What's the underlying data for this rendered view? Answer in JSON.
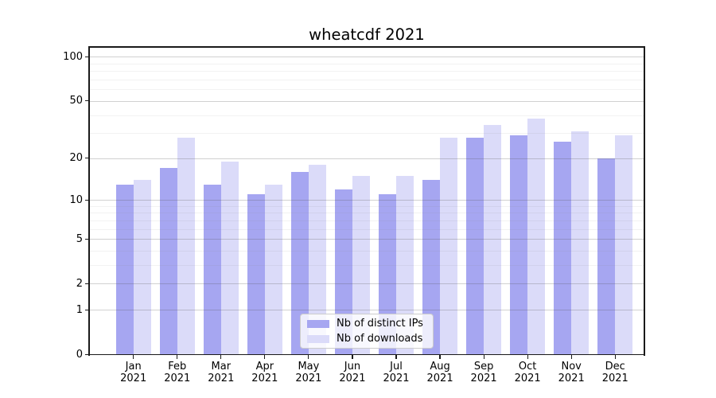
{
  "figure": {
    "title": "wheatcdf 2021"
  },
  "chart_data": {
    "type": "bar",
    "title": "wheatcdf 2021",
    "categories": [
      "Jan\n2021",
      "Feb\n2021",
      "Mar\n2021",
      "Apr\n2021",
      "May\n2021",
      "Jun\n2021",
      "Jul\n2021",
      "Aug\n2021",
      "Sep\n2021",
      "Oct\n2021",
      "Nov\n2021",
      "Dec\n2021"
    ],
    "series": [
      {
        "name": "Nb of distinct IPs",
        "color": "#a6a6f1",
        "values": [
          13,
          17,
          13,
          11,
          16,
          12,
          11,
          14,
          28,
          29,
          26,
          20
        ]
      },
      {
        "name": "Nb of downloads",
        "color": "#dbdbf9",
        "values": [
          14,
          28,
          19,
          13,
          18,
          15,
          15,
          28,
          34,
          38,
          31,
          29
        ]
      }
    ],
    "y_scale": "log1p",
    "y_ticks": [
      0,
      1,
      2,
      5,
      10,
      20,
      50,
      100
    ],
    "y_minor_lines": [
      3,
      4,
      6,
      7,
      8,
      9,
      30,
      40,
      60,
      70,
      80,
      90
    ],
    "ylim": [
      0,
      117
    ],
    "xlabel": "",
    "ylabel": "",
    "grid": true,
    "legend_position": "lower center"
  },
  "colors": {
    "major_grid": "rgba(90,90,90,0.28)",
    "minor_grid": "rgba(130,130,130,0.10)",
    "axis": "#1a1a1a",
    "text": "#000000",
    "legend_border": "#cccccc"
  }
}
